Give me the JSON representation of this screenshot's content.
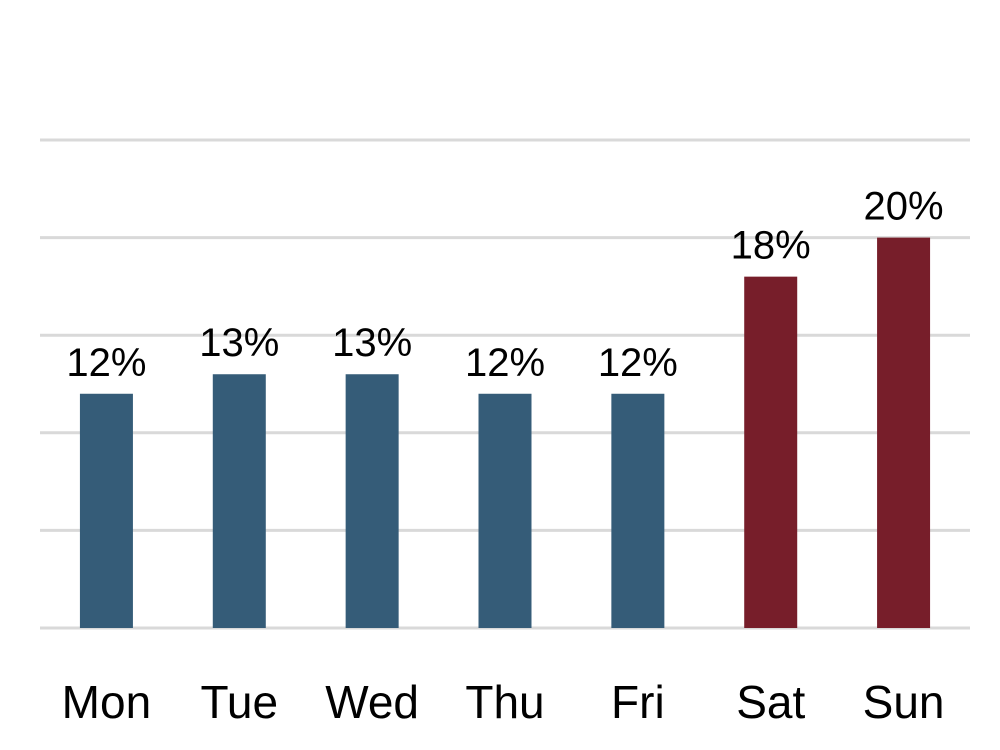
{
  "chart_data": {
    "type": "bar",
    "categories": [
      "Mon",
      "Tue",
      "Wed",
      "Thu",
      "Fri",
      "Sat",
      "Sun"
    ],
    "values": [
      12,
      13,
      13,
      12,
      12,
      18,
      20
    ],
    "data_labels": [
      "12%",
      "13%",
      "13%",
      "12%",
      "12%",
      "18%",
      "20%"
    ],
    "ylim": [
      0,
      25
    ],
    "grid": true,
    "legend": "none",
    "colors": {
      "weekday": "#355c78",
      "weekend": "#771e2a"
    },
    "bar_colors": [
      "weekday",
      "weekday",
      "weekday",
      "weekday",
      "weekday",
      "weekend",
      "weekend"
    ]
  }
}
